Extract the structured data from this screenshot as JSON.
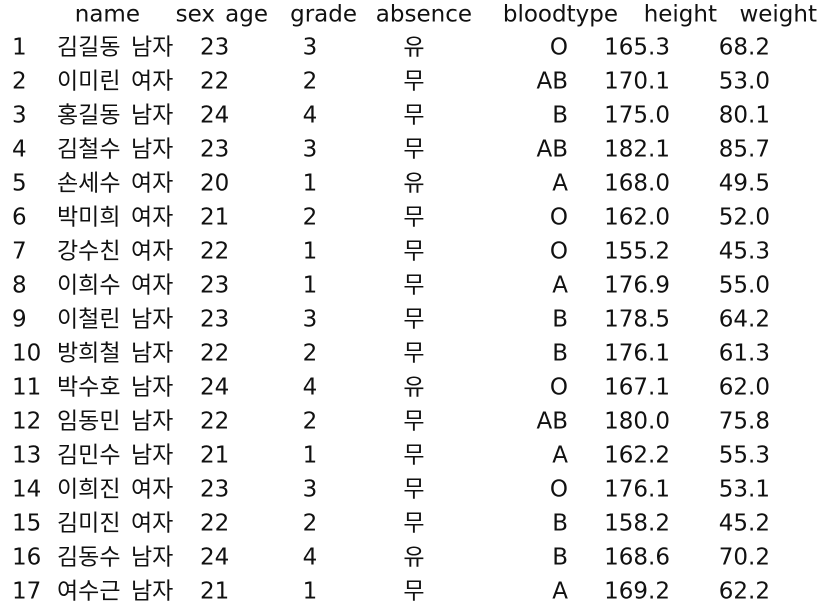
{
  "table": {
    "columns": [
      "name",
      "sex",
      "age",
      "grade",
      "absence",
      "bloodtype",
      "height",
      "weight"
    ],
    "rows": [
      [
        "1",
        "김길동",
        "남자",
        "23",
        "3",
        "유",
        "O",
        "165.3",
        "68.2"
      ],
      [
        "2",
        "이미린",
        "여자",
        "22",
        "2",
        "무",
        "AB",
        "170.1",
        "53.0"
      ],
      [
        "3",
        "홍길동",
        "남자",
        "24",
        "4",
        "무",
        "B",
        "175.0",
        "80.1"
      ],
      [
        "4",
        "김철수",
        "남자",
        "23",
        "3",
        "무",
        "AB",
        "182.1",
        "85.7"
      ],
      [
        "5",
        "손세수",
        "여자",
        "20",
        "1",
        "유",
        "A",
        "168.0",
        "49.5"
      ],
      [
        "6",
        "박미희",
        "여자",
        "21",
        "2",
        "무",
        "O",
        "162.0",
        "52.0"
      ],
      [
        "7",
        "강수친",
        "여자",
        "22",
        "1",
        "무",
        "O",
        "155.2",
        "45.3"
      ],
      [
        "8",
        "이희수",
        "여자",
        "23",
        "1",
        "무",
        "A",
        "176.9",
        "55.0"
      ],
      [
        "9",
        "이철린",
        "남자",
        "23",
        "3",
        "무",
        "B",
        "178.5",
        "64.2"
      ],
      [
        "10",
        "방희철",
        "남자",
        "22",
        "2",
        "무",
        "B",
        "176.1",
        "61.3"
      ],
      [
        "11",
        "박수호",
        "남자",
        "24",
        "4",
        "유",
        "O",
        "167.1",
        "62.0"
      ],
      [
        "12",
        "임동민",
        "남자",
        "22",
        "2",
        "무",
        "AB",
        "180.0",
        "75.8"
      ],
      [
        "13",
        "김민수",
        "남자",
        "21",
        "1",
        "무",
        "A",
        "162.2",
        "55.3"
      ],
      [
        "14",
        "이희진",
        "여자",
        "23",
        "3",
        "무",
        "O",
        "176.1",
        "53.1"
      ],
      [
        "15",
        "김미진",
        "여자",
        "22",
        "2",
        "무",
        "B",
        "158.2",
        "45.2"
      ],
      [
        "16",
        "김동수",
        "남자",
        "24",
        "4",
        "유",
        "B",
        "168.6",
        "70.2"
      ],
      [
        "17",
        "여수근",
        "남자",
        "21",
        "1",
        "무",
        "A",
        "169.2",
        "62.2"
      ]
    ]
  }
}
